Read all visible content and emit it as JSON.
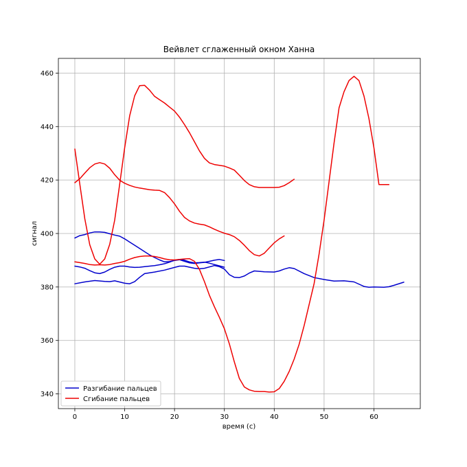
{
  "chart_data": {
    "type": "line",
    "title": "Вейвлет сглаженный окном Ханна",
    "xlabel": "время (с)",
    "ylabel": "сигнал",
    "xlim": [
      -3.3,
      69.3
    ],
    "ylim": [
      334.5,
      465.5
    ],
    "xticks": [
      0,
      10,
      20,
      30,
      40,
      50,
      60
    ],
    "yticks": [
      340,
      360,
      380,
      400,
      420,
      440,
      460
    ],
    "grid": true,
    "legend_position": "lower-left",
    "legend": [
      {
        "label": "Разгибание пальцев",
        "color": "#0000cc"
      },
      {
        "label": "Сгибание пальцев",
        "color": "#ee0000"
      }
    ],
    "series": [
      {
        "group": "Разгибание пальцев",
        "color": "#0000cc",
        "x": [
          0,
          1,
          2,
          3,
          4,
          5,
          6,
          7,
          8,
          9,
          10,
          11,
          12,
          13,
          14,
          15,
          16,
          17,
          18,
          19,
          20,
          21,
          22,
          23,
          24,
          25,
          26,
          27,
          28,
          29,
          30
        ],
        "y": [
          398.3,
          399.2,
          399.6,
          400.2,
          400.6,
          400.6,
          400.4,
          399.9,
          399.4,
          399.0,
          398.0,
          396.8,
          395.6,
          394.4,
          393.2,
          392.0,
          391.0,
          390.1,
          389.4,
          389.5,
          389.9,
          390.2,
          389.6,
          389.0,
          388.8,
          389.0,
          389.2,
          389.6,
          390.0,
          390.3,
          389.9
        ]
      },
      {
        "group": "Разгибание пальцев",
        "color": "#0000cc",
        "x": [
          0,
          1,
          2,
          3,
          4,
          5,
          6,
          7,
          8,
          9,
          10,
          11,
          12,
          13,
          14,
          15,
          16,
          17,
          18,
          19,
          20,
          21,
          22,
          23,
          24,
          25,
          26,
          27,
          28,
          29,
          30
        ],
        "y": [
          387.8,
          387.5,
          387.0,
          386.1,
          385.3,
          385.0,
          385.6,
          386.6,
          387.4,
          387.8,
          387.8,
          387.5,
          387.3,
          387.4,
          387.6,
          387.8,
          388.0,
          388.3,
          388.7,
          389.3,
          390.0,
          390.3,
          390.0,
          389.4,
          389.0,
          389.1,
          389.3,
          388.9,
          388.4,
          387.9,
          387.4
        ]
      },
      {
        "group": "Разгибание пальцев",
        "color": "#0000cc",
        "x": [
          0,
          2,
          4,
          6,
          7,
          8,
          10,
          11,
          12,
          13,
          14,
          16,
          18,
          20,
          21,
          22,
          24,
          25,
          26,
          28,
          29,
          30,
          31,
          32,
          33,
          34,
          35,
          36,
          38,
          40,
          41,
          42,
          43,
          44,
          46,
          48,
          50,
          52,
          54,
          56,
          58,
          59,
          60,
          62,
          63,
          64,
          66
        ],
        "y": [
          381.2,
          381.9,
          382.4,
          382.1,
          382.0,
          382.3,
          381.4,
          381.2,
          382.0,
          383.6,
          385.0,
          385.6,
          386.3,
          387.3,
          387.8,
          387.8,
          387.0,
          386.8,
          387.0,
          388.0,
          387.6,
          386.7,
          384.6,
          383.6,
          383.5,
          384.1,
          385.2,
          386.0,
          385.7,
          385.6,
          386.0,
          386.7,
          387.2,
          386.9,
          385.0,
          383.5,
          382.8,
          382.2,
          382.3,
          381.9,
          380.2,
          379.9,
          380.0,
          379.9,
          380.1,
          380.6,
          381.8
        ]
      },
      {
        "group": "Сгибание пальцев",
        "color": "#ee0000",
        "x": [
          0,
          1,
          2,
          3,
          4,
          5,
          6,
          7,
          8,
          9,
          10,
          11,
          12,
          13,
          14,
          15,
          16,
          17,
          18,
          19,
          20,
          21,
          22,
          23,
          24,
          25,
          26,
          27,
          28,
          29,
          30,
          31,
          32,
          33,
          34,
          35,
          36,
          37,
          38,
          39,
          40,
          41,
          42
        ],
        "y": [
          419.0,
          420.5,
          422.6,
          424.6,
          426.0,
          426.5,
          426.0,
          424.4,
          422.0,
          419.9,
          418.8,
          418.0,
          417.4,
          417.0,
          416.7,
          416.4,
          416.2,
          416.1,
          415.3,
          413.4,
          411.1,
          408.3,
          406.0,
          404.7,
          403.9,
          403.5,
          403.2,
          402.5,
          401.6,
          400.8,
          400.1,
          399.6,
          398.8,
          397.4,
          395.6,
          393.6,
          392.1,
          391.6,
          392.6,
          394.6,
          396.5,
          398.0,
          399.1
        ]
      },
      {
        "group": "Сгибание пальцев",
        "color": "#ee0000",
        "x": [
          0,
          1,
          2,
          3,
          4,
          5,
          6,
          7,
          8,
          9,
          10,
          11,
          12,
          13,
          14,
          15,
          16,
          17,
          18,
          19,
          20,
          21,
          22,
          23,
          24,
          25,
          26,
          27,
          28,
          29,
          30,
          31,
          32,
          33,
          34,
          35,
          36,
          37,
          38,
          39,
          40,
          41,
          42,
          43,
          44
        ],
        "y": [
          431.6,
          418.5,
          405.5,
          395.8,
          390.5,
          388.5,
          390.5,
          396.0,
          405.0,
          418.5,
          432.0,
          444.0,
          451.5,
          455.3,
          455.4,
          453.6,
          451.3,
          450.0,
          448.8,
          447.3,
          445.8,
          443.5,
          440.7,
          437.7,
          434.3,
          430.9,
          428.1,
          426.4,
          425.8,
          425.5,
          425.2,
          424.5,
          423.7,
          421.8,
          419.8,
          418.3,
          417.5,
          417.2,
          417.2,
          417.2,
          417.2,
          417.3,
          417.9,
          419.0,
          420.3
        ]
      },
      {
        "group": "Сгибание пальцев",
        "color": "#ee0000",
        "x": [
          0,
          1,
          2,
          3,
          4,
          5,
          6,
          7,
          8,
          9,
          10,
          11,
          12,
          13,
          14,
          15,
          16,
          17,
          18,
          19,
          20,
          21,
          22,
          23,
          24,
          25,
          26,
          27,
          28,
          29,
          30,
          31,
          32,
          33,
          34,
          35,
          36,
          37,
          38,
          39,
          40,
          41,
          42,
          43,
          44,
          45,
          46,
          47,
          48,
          49,
          50,
          51,
          52,
          53,
          54,
          55,
          56,
          57,
          58,
          59,
          60,
          61,
          62,
          63
        ],
        "y": [
          389.4,
          389.1,
          388.8,
          388.4,
          388.2,
          388.3,
          388.2,
          388.4,
          388.8,
          389.1,
          389.6,
          390.4,
          391.0,
          391.4,
          391.6,
          391.6,
          391.4,
          391.0,
          390.5,
          390.2,
          390.1,
          390.3,
          390.5,
          390.6,
          389.6,
          386.6,
          382.0,
          376.9,
          372.6,
          368.6,
          364.4,
          358.7,
          352.0,
          345.8,
          342.6,
          341.5,
          341.0,
          340.9,
          340.9,
          340.7,
          340.8,
          342.0,
          344.7,
          348.4,
          353.0,
          358.6,
          365.6,
          373.4,
          381.3,
          392.3,
          405.0,
          419.5,
          433.8,
          447.0,
          453.0,
          457.2,
          458.8,
          457.2,
          451.4,
          443.0,
          432.0,
          418.3,
          418.3,
          418.3
        ]
      }
    ]
  }
}
